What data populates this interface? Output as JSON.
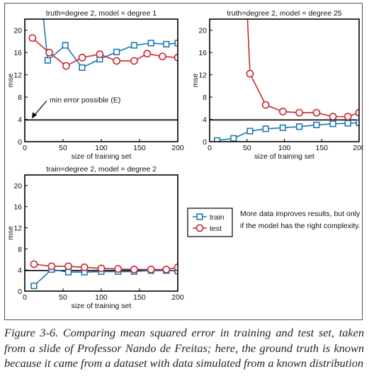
{
  "caption": "Figure 3-6. Comparing mean squared error in training and test set, taken from a slide of Professor Nando de Freitas; here, the ground truth is known because it came from a dataset with data simulated from a known distribution",
  "colors": {
    "train": "#1f78b4",
    "test": "#c8282e",
    "frame": "#555555"
  },
  "legend": {
    "train": "train",
    "test": "test"
  },
  "note": {
    "line1": "More data improves results, but only",
    "line2": "if the model has the right complexity."
  },
  "chart_data": [
    {
      "type": "line",
      "title": "truth=degree 2, model = degree 1",
      "xlabel": "size of training set",
      "ylabel": "mse",
      "xlim": [
        0,
        200
      ],
      "ylim": [
        0,
        22
      ],
      "xticks": [
        0,
        50,
        100,
        150,
        200
      ],
      "yticks": [
        0,
        4,
        8,
        12,
        16,
        20
      ],
      "min_error": 3.9,
      "annotation": "min error possible (E)",
      "series": [
        {
          "name": "train",
          "marker": "square",
          "x": [
            30,
            53,
            75,
            98,
            120,
            143,
            165,
            185,
            200
          ],
          "y": [
            14.6,
            17.3,
            13.3,
            14.8,
            16.1,
            17.3,
            17.7,
            17.5,
            17.7
          ],
          "start_above": {
            "x": 23,
            "y": 24
          }
        },
        {
          "name": "test",
          "marker": "circle",
          "x": [
            10,
            32,
            54,
            75,
            98,
            120,
            143,
            160,
            180,
            200
          ],
          "y": [
            18.6,
            16.0,
            13.6,
            15.1,
            15.7,
            14.5,
            14.5,
            15.8,
            15.3,
            15.1
          ]
        }
      ]
    },
    {
      "type": "line",
      "title": "truth=degree 2, model = degree 25",
      "xlabel": "size of training set",
      "ylabel": "mse",
      "xlim": [
        0,
        200
      ],
      "ylim": [
        0,
        22
      ],
      "xticks": [
        0,
        50,
        100,
        150,
        200
      ],
      "yticks": [
        0,
        4,
        8,
        12,
        16,
        20
      ],
      "min_error": 3.9,
      "series": [
        {
          "name": "train",
          "marker": "square",
          "x": [
            10,
            32,
            54,
            75,
            98,
            120,
            143,
            165,
            185,
            200
          ],
          "y": [
            0.2,
            0.6,
            1.9,
            2.3,
            2.5,
            2.7,
            3.0,
            3.2,
            3.3,
            3.4
          ]
        },
        {
          "name": "test",
          "marker": "circle",
          "x": [
            54,
            75,
            98,
            120,
            143,
            165,
            185,
            200
          ],
          "y": [
            12.2,
            6.6,
            5.4,
            5.2,
            5.2,
            4.5,
            4.5,
            5.2
          ],
          "start_above": {
            "x": 50,
            "y": 24
          }
        }
      ]
    },
    {
      "type": "line",
      "title": "train=degree 2, model = degree 2",
      "xlabel": "size of training set",
      "ylabel": "mse",
      "xlim": [
        0,
        200
      ],
      "ylim": [
        0,
        22
      ],
      "xticks": [
        0,
        50,
        100,
        150,
        200
      ],
      "yticks": [
        0,
        4,
        8,
        12,
        16,
        20
      ],
      "min_error": 3.9,
      "series": [
        {
          "name": "train",
          "marker": "square",
          "x": [
            12,
            35,
            57,
            78,
            100,
            122,
            143,
            165,
            185,
            200
          ],
          "y": [
            1.0,
            4.1,
            3.6,
            3.6,
            3.7,
            3.7,
            3.7,
            3.9,
            3.9,
            3.8
          ]
        },
        {
          "name": "test",
          "marker": "circle",
          "x": [
            12,
            35,
            57,
            78,
            100,
            122,
            143,
            165,
            185,
            200
          ],
          "y": [
            5.1,
            4.7,
            4.7,
            4.5,
            4.3,
            4.2,
            4.1,
            4.1,
            4.1,
            4.5
          ]
        }
      ]
    }
  ]
}
